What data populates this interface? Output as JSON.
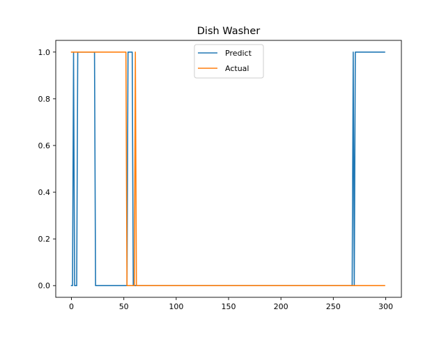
{
  "chart_data": {
    "type": "line",
    "title": "Dish Washer",
    "xlabel": "",
    "ylabel": "",
    "xlim": [
      -15,
      315
    ],
    "ylim": [
      -0.05,
      1.05
    ],
    "xticks": [
      0,
      50,
      100,
      150,
      200,
      250,
      300
    ],
    "yticks": [
      0.0,
      0.2,
      0.4,
      0.6,
      0.8,
      1.0
    ],
    "ytick_labels": [
      "0.0",
      "0.2",
      "0.4",
      "0.6",
      "0.8",
      "1.0"
    ],
    "grid": false,
    "legend_position": "top-center",
    "series": [
      {
        "name": "Predict",
        "color": "#1f77b4",
        "x": [
          0,
          1,
          2,
          3,
          4,
          5,
          6,
          22,
          23,
          53,
          54,
          58,
          59,
          268,
          269,
          270,
          271,
          299
        ],
        "y": [
          0,
          0,
          1,
          0,
          0,
          0,
          1,
          1,
          0,
          0,
          1,
          1,
          0,
          0,
          1,
          0,
          1,
          1
        ]
      },
      {
        "name": "Actual",
        "color": "#ff7f0e",
        "x": [
          0,
          52,
          53,
          60,
          61,
          62,
          299
        ],
        "y": [
          1,
          1,
          0,
          0,
          1,
          0,
          0
        ]
      }
    ]
  }
}
